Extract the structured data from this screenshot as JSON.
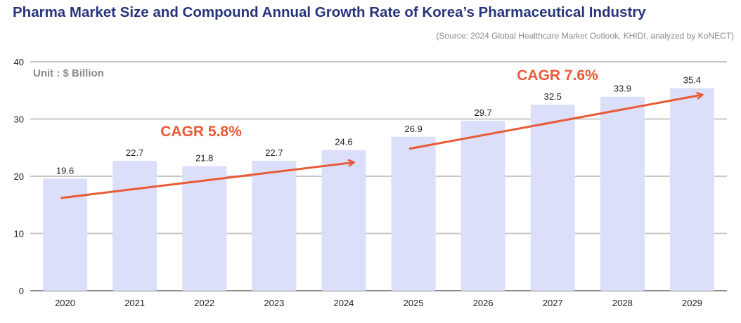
{
  "title": "Pharma Market Size and Compound Annual Growth Rate of Korea’s Pharmaceutical Industry",
  "source": "(Source: 2024 Global Healthcare Market Outlook, KHIDI, analyzed by KoNECT)",
  "colors": {
    "bar": "#dcdffa",
    "trend": "#e85a36",
    "title": "#27347a",
    "grid": "#c8c8c8"
  },
  "chart_data": {
    "type": "bar",
    "unit_label": "Unit : $ Billion",
    "categories": [
      "2020",
      "2021",
      "2022",
      "2023",
      "2024",
      "2025",
      "2026",
      "2027",
      "2028",
      "2029"
    ],
    "values": [
      19.6,
      22.7,
      21.8,
      22.7,
      24.6,
      26.9,
      29.7,
      32.5,
      33.9,
      35.4
    ],
    "value_labels": [
      "19.6",
      "22.7",
      "21.8",
      "22.7",
      "24.6",
      "26.9",
      "29.7",
      "32.5",
      "33.9",
      "35.4"
    ],
    "yticks": [
      "0",
      "10",
      "20",
      "30",
      "40"
    ],
    "ylim": [
      0,
      40
    ],
    "grid": true,
    "annotations": [
      {
        "text": "CAGR 5.8%",
        "from": "2020",
        "to": "2024",
        "y_start": 16.2,
        "y_end": 22.4
      },
      {
        "text": "CAGR 7.6%",
        "from": "2025",
        "to": "2029",
        "y_start": 24.8,
        "y_end": 34.2
      }
    ]
  }
}
